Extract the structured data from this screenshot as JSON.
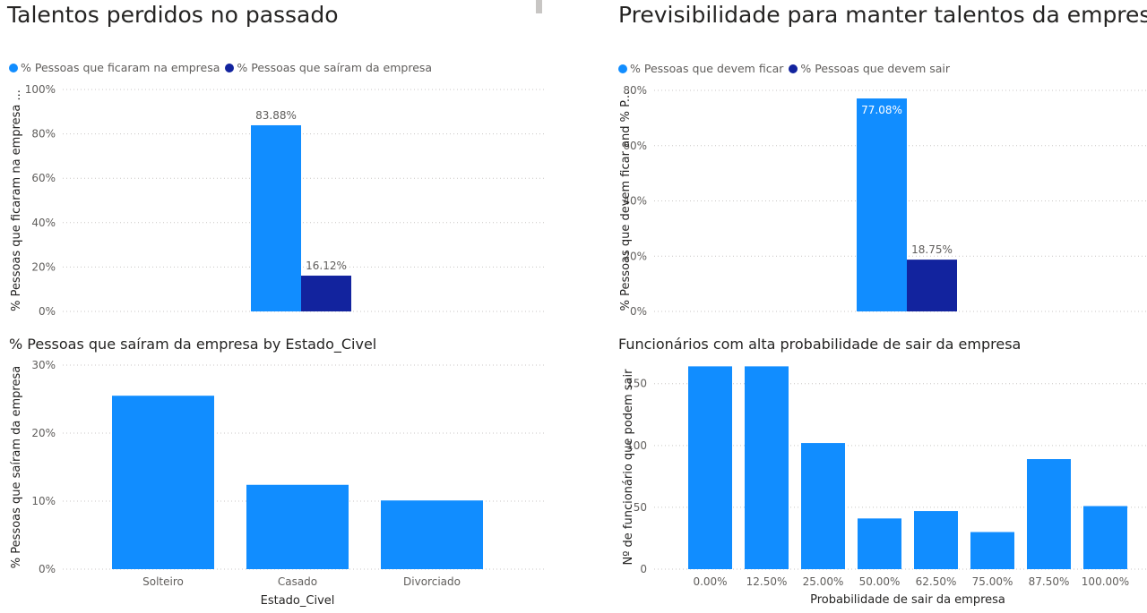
{
  "pages": {
    "left_title": "Talentos perdidos no passado",
    "right_title": "Previsibilidade para manter talentos da empresa"
  },
  "legend_left": {
    "items": [
      {
        "label": "% Pessoas que ficaram na empresa",
        "color": "#118dff"
      },
      {
        "label": "% Pessoas que saíram da empresa",
        "color": "#12239e"
      }
    ]
  },
  "legend_right": {
    "items": [
      {
        "label": "% Pessoas que devem ficar",
        "color": "#118dff"
      },
      {
        "label": "% Pessoas que devem sair",
        "color": "#12239e"
      }
    ]
  },
  "chart_data": [
    {
      "id": "c1",
      "type": "bar",
      "title": "",
      "ylabel": "% Pessoas que ficaram na empresa ...",
      "xlabel": "",
      "yticks": [
        "0%",
        "20%",
        "40%",
        "60%",
        "80%",
        "100%"
      ],
      "ylim": [
        0,
        100
      ],
      "categories": [
        ""
      ],
      "series": [
        {
          "name": "% Pessoas que ficaram na empresa",
          "values": [
            83.88
          ],
          "labels": [
            "83.88%"
          ],
          "color": "#118dff"
        },
        {
          "name": "% Pessoas que saíram da empresa",
          "values": [
            16.12
          ],
          "labels": [
            "16.12%"
          ],
          "color": "#12239e"
        }
      ],
      "grid": true
    },
    {
      "id": "c2",
      "type": "bar",
      "title": "",
      "ylabel": "% Pessoas que devem ficar and % P...",
      "xlabel": "",
      "yticks": [
        "0%",
        "20%",
        "40%",
        "60%",
        "80%"
      ],
      "ylim": [
        0,
        80
      ],
      "categories": [
        ""
      ],
      "series": [
        {
          "name": "% Pessoas que devem ficar",
          "values": [
            77.08
          ],
          "labels": [
            "77.08%"
          ],
          "color": "#118dff"
        },
        {
          "name": "% Pessoas que devem sair",
          "values": [
            18.75
          ],
          "labels": [
            "18.75%"
          ],
          "color": "#12239e"
        }
      ],
      "grid": true
    },
    {
      "id": "c3",
      "type": "bar",
      "title": "% Pessoas que saíram da empresa by Estado_Civel",
      "ylabel": "% Pessoas que saíram da empresa",
      "xlabel": "Estado_Civel",
      "yticks": [
        "0%",
        "10%",
        "20%",
        "30%"
      ],
      "ylim": [
        0,
        30
      ],
      "categories": [
        "Solteiro",
        "Casado",
        "Divorciado"
      ],
      "series": [
        {
          "name": "",
          "values": [
            25.5,
            12.4,
            10.1
          ],
          "color": "#118dff"
        }
      ],
      "grid": true
    },
    {
      "id": "c4",
      "type": "bar",
      "title": "Funcionários com alta probabilidade de sair da empresa",
      "ylabel": "Nº de funcionário que podem sair",
      "xlabel": "Probabilidade de sair da empresa",
      "yticks": [
        "0",
        "50",
        "100",
        "150"
      ],
      "ylim": [
        0,
        165
      ],
      "categories": [
        "0.00%",
        "12.50%",
        "25.00%",
        "50.00%",
        "62.50%",
        "75.00%",
        "87.50%",
        "100.00%"
      ],
      "series": [
        {
          "name": "",
          "values": [
            164,
            164,
            102,
            41,
            47,
            30,
            89,
            51
          ],
          "color": "#118dff"
        }
      ],
      "grid": true
    }
  ]
}
